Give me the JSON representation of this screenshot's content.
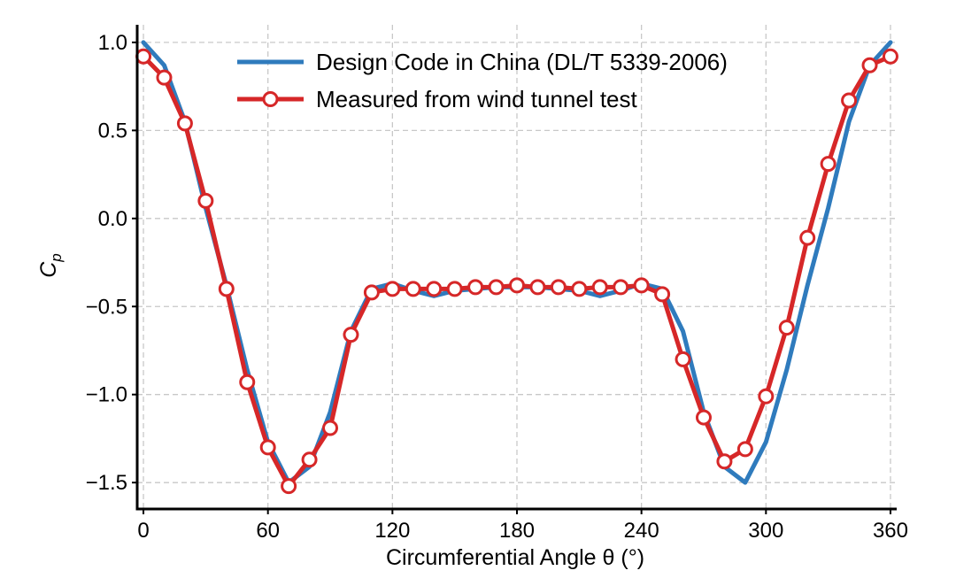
{
  "chart_data": {
    "type": "line",
    "title": "",
    "xlabel": "Circumferential Angle θ (°)",
    "ylabel_main": "C",
    "ylabel_sub": "p",
    "xlim": [
      -3,
      363
    ],
    "ylim": [
      -1.65,
      1.1
    ],
    "xticks": [
      0,
      60,
      120,
      180,
      240,
      300,
      360
    ],
    "xtick_labels": [
      "0",
      "60",
      "120",
      "180",
      "240",
      "300",
      "360"
    ],
    "yticks": [
      1.0,
      0.5,
      0.0,
      -0.5,
      -1.0,
      -1.5
    ],
    "ytick_labels": [
      "1.0",
      "0.5",
      "0.0",
      "−0.5",
      "−1.0",
      "−1.5"
    ],
    "grid": true,
    "legend_position": "top-center",
    "series": [
      {
        "name": "Design Code in China (DL/T 5339-2006)",
        "color": "#2f7bbd",
        "marker": "none",
        "x": [
          0,
          10,
          20,
          30,
          40,
          50,
          60,
          70,
          80,
          90,
          100,
          110,
          120,
          130,
          140,
          150,
          160,
          170,
          180,
          190,
          200,
          210,
          220,
          230,
          240,
          250,
          260,
          270,
          280,
          290,
          300,
          310,
          320,
          330,
          340,
          350,
          360
        ],
        "values": [
          1.0,
          0.87,
          0.55,
          0.06,
          -0.38,
          -0.86,
          -1.27,
          -1.5,
          -1.41,
          -1.1,
          -0.64,
          -0.4,
          -0.37,
          -0.41,
          -0.44,
          -0.41,
          -0.4,
          -0.39,
          -0.39,
          -0.39,
          -0.4,
          -0.41,
          -0.44,
          -0.41,
          -0.37,
          -0.4,
          -0.64,
          -1.1,
          -1.41,
          -1.5,
          -1.27,
          -0.86,
          -0.38,
          0.06,
          0.55,
          0.87,
          1.0
        ]
      },
      {
        "name": "Measured from wind tunnel test",
        "color": "#d62728",
        "marker": "open-circle",
        "x": [
          0,
          10,
          20,
          30,
          40,
          50,
          60,
          70,
          80,
          90,
          100,
          110,
          120,
          130,
          140,
          150,
          160,
          170,
          180,
          190,
          200,
          210,
          220,
          230,
          240,
          250,
          260,
          270,
          280,
          290,
          300,
          310,
          320,
          330,
          340,
          350,
          360
        ],
        "values": [
          0.92,
          0.8,
          0.54,
          0.1,
          -0.4,
          -0.93,
          -1.3,
          -1.52,
          -1.37,
          -1.19,
          -0.66,
          -0.42,
          -0.4,
          -0.4,
          -0.4,
          -0.4,
          -0.39,
          -0.39,
          -0.38,
          -0.39,
          -0.39,
          -0.4,
          -0.39,
          -0.39,
          -0.38,
          -0.43,
          -0.8,
          -1.13,
          -1.38,
          -1.31,
          -1.01,
          -0.62,
          -0.11,
          0.31,
          0.67,
          0.87,
          0.92
        ]
      }
    ]
  }
}
